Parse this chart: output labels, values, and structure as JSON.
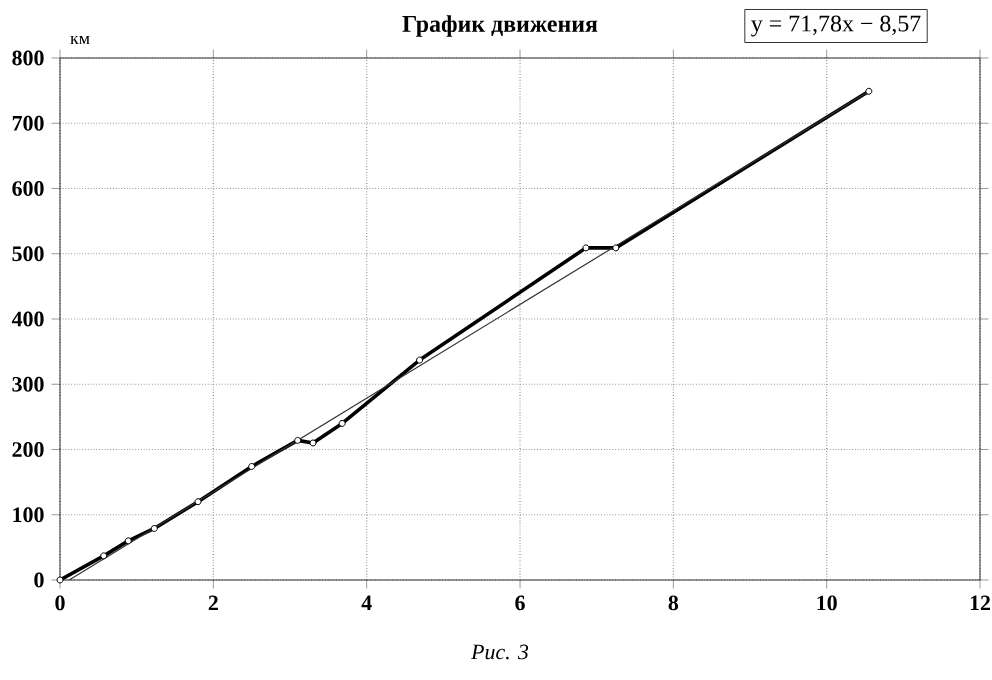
{
  "chart_data": {
    "type": "line",
    "title": "График движения",
    "ylabel": "км",
    "annotations": [
      "y = 71,78x − 8,57",
      "Рис. 3"
    ],
    "series": [
      {
        "color": "#000000",
        "marker": "circle",
        "x": [
          0,
          0.57,
          0.89,
          1.23,
          1.8,
          2.5,
          3.1,
          3.3,
          3.68,
          4.69,
          6.86,
          7.25,
          10.55
        ],
        "values": [
          0,
          37,
          60,
          79,
          120,
          174,
          214,
          210,
          240,
          337,
          509,
          509,
          749
        ]
      },
      {
        "color": "#333333",
        "marker": "none",
        "x": [
          0.12,
          10.55
        ],
        "values": [
          0,
          749
        ]
      }
    ],
    "xlim": [
      0,
      12
    ],
    "ylim": [
      0,
      800
    ],
    "xticks": [
      0,
      2,
      4,
      6,
      8,
      10,
      12
    ],
    "yticks": [
      0,
      100,
      200,
      300,
      400,
      500,
      600,
      700,
      800
    ],
    "grid": true
  }
}
